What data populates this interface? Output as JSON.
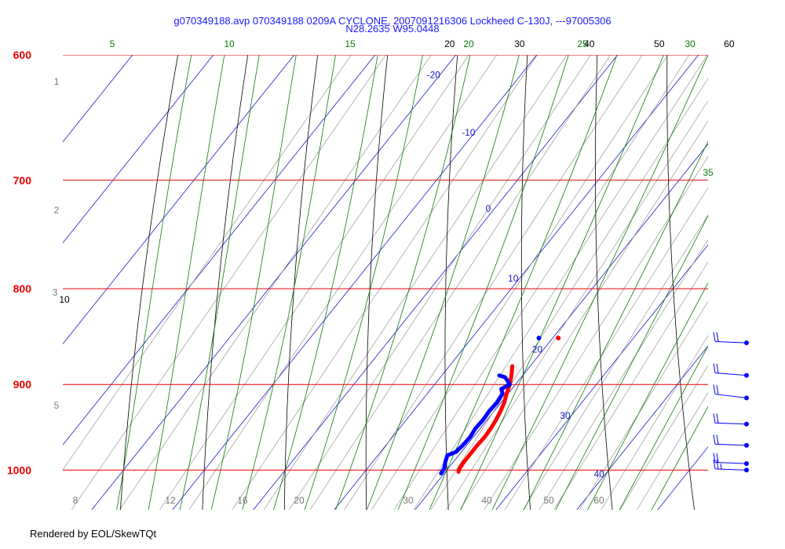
{
  "title_line1": "g070349188.avp 070349188 0209A CYCLONE, 2007091216306 Lockheed C-130J, ---97005306",
  "title_line2": "N28.2635 W95.0448",
  "credit": "Rendered by EOL/SkewTQt",
  "chart_data": {
    "type": "skew-t",
    "pressure_range_hpa": [
      1050,
      600
    ],
    "pressure_labels": [
      "600",
      "700",
      "800",
      "900",
      "1000"
    ],
    "isotherm_labels": [
      "-20",
      "-10",
      "0",
      "10",
      "20",
      "30",
      "40"
    ],
    "dry_adiabat_labels": [
      "20",
      "30",
      "40",
      "50",
      "60"
    ],
    "dry_adiabat_left_label": "10",
    "moist_adiabat_labels": [
      "5",
      "10",
      "15",
      "20",
      "25",
      "30",
      "35"
    ],
    "height_labels": [
      "1",
      "2",
      "3",
      "4",
      "5"
    ],
    "mixing_ratio_labels": [
      "8",
      "12",
      "16",
      "20",
      "30",
      "40",
      "50",
      "60"
    ],
    "colors": {
      "isobar": "#e60000",
      "isotherm": "#1a1acc",
      "dry_adiabat": "#000000",
      "moist_adiabat": "#0a7a0a",
      "mixing_ratio": "#888888",
      "temperature": "#ff0000",
      "dewpoint": "#0000ff"
    },
    "temperature_profile": [
      {
        "p": 1002,
        "t": 21.6
      },
      {
        "p": 998,
        "t": 21.4
      },
      {
        "p": 990,
        "t": 21.3
      },
      {
        "p": 980,
        "t": 21.3
      },
      {
        "p": 970,
        "t": 21.3
      },
      {
        "p": 960,
        "t": 21.4
      },
      {
        "p": 950,
        "t": 21.3
      },
      {
        "p": 940,
        "t": 21.1
      },
      {
        "p": 930,
        "t": 20.8
      },
      {
        "p": 920,
        "t": 20.4
      },
      {
        "p": 910,
        "t": 19.8
      },
      {
        "p": 900,
        "t": 19.3
      },
      {
        "p": 890,
        "t": 18.6
      },
      {
        "p": 880,
        "t": 17.8
      }
    ],
    "dewpoint_profile": [
      {
        "p": 1004,
        "td": 19.6
      },
      {
        "p": 998,
        "td": 19.5
      },
      {
        "p": 990,
        "td": 19.0
      },
      {
        "p": 982,
        "td": 18.6
      },
      {
        "p": 978,
        "td": 19.3
      },
      {
        "p": 970,
        "td": 19.5
      },
      {
        "p": 960,
        "td": 19.6
      },
      {
        "p": 950,
        "td": 19.4
      },
      {
        "p": 940,
        "td": 19.5
      },
      {
        "p": 930,
        "td": 19.4
      },
      {
        "p": 920,
        "td": 19.5
      },
      {
        "p": 910,
        "td": 19.3
      },
      {
        "p": 905,
        "td": 18.7
      },
      {
        "p": 900,
        "td": 19.3
      },
      {
        "p": 895,
        "td": 18.5
      },
      {
        "p": 892,
        "td": 18.0
      },
      {
        "p": 890,
        "td": 17.1
      }
    ],
    "surface_points": [
      {
        "kind": "temperature",
        "p": 850,
        "t": 20.7
      },
      {
        "kind": "dewpoint",
        "p": 850,
        "t": 18.3
      }
    ],
    "wind_barbs": [
      {
        "p": 855,
        "dir": 95,
        "speed_kt": 20
      },
      {
        "p": 890,
        "dir": 100,
        "speed_kt": 20
      },
      {
        "p": 915,
        "dir": 105,
        "speed_kt": 20
      },
      {
        "p": 945,
        "dir": 95,
        "speed_kt": 20
      },
      {
        "p": 970,
        "dir": 95,
        "speed_kt": 20
      },
      {
        "p": 992,
        "dir": 95,
        "speed_kt": 20
      },
      {
        "p": 1000,
        "dir": 95,
        "speed_kt": 25
      }
    ]
  }
}
